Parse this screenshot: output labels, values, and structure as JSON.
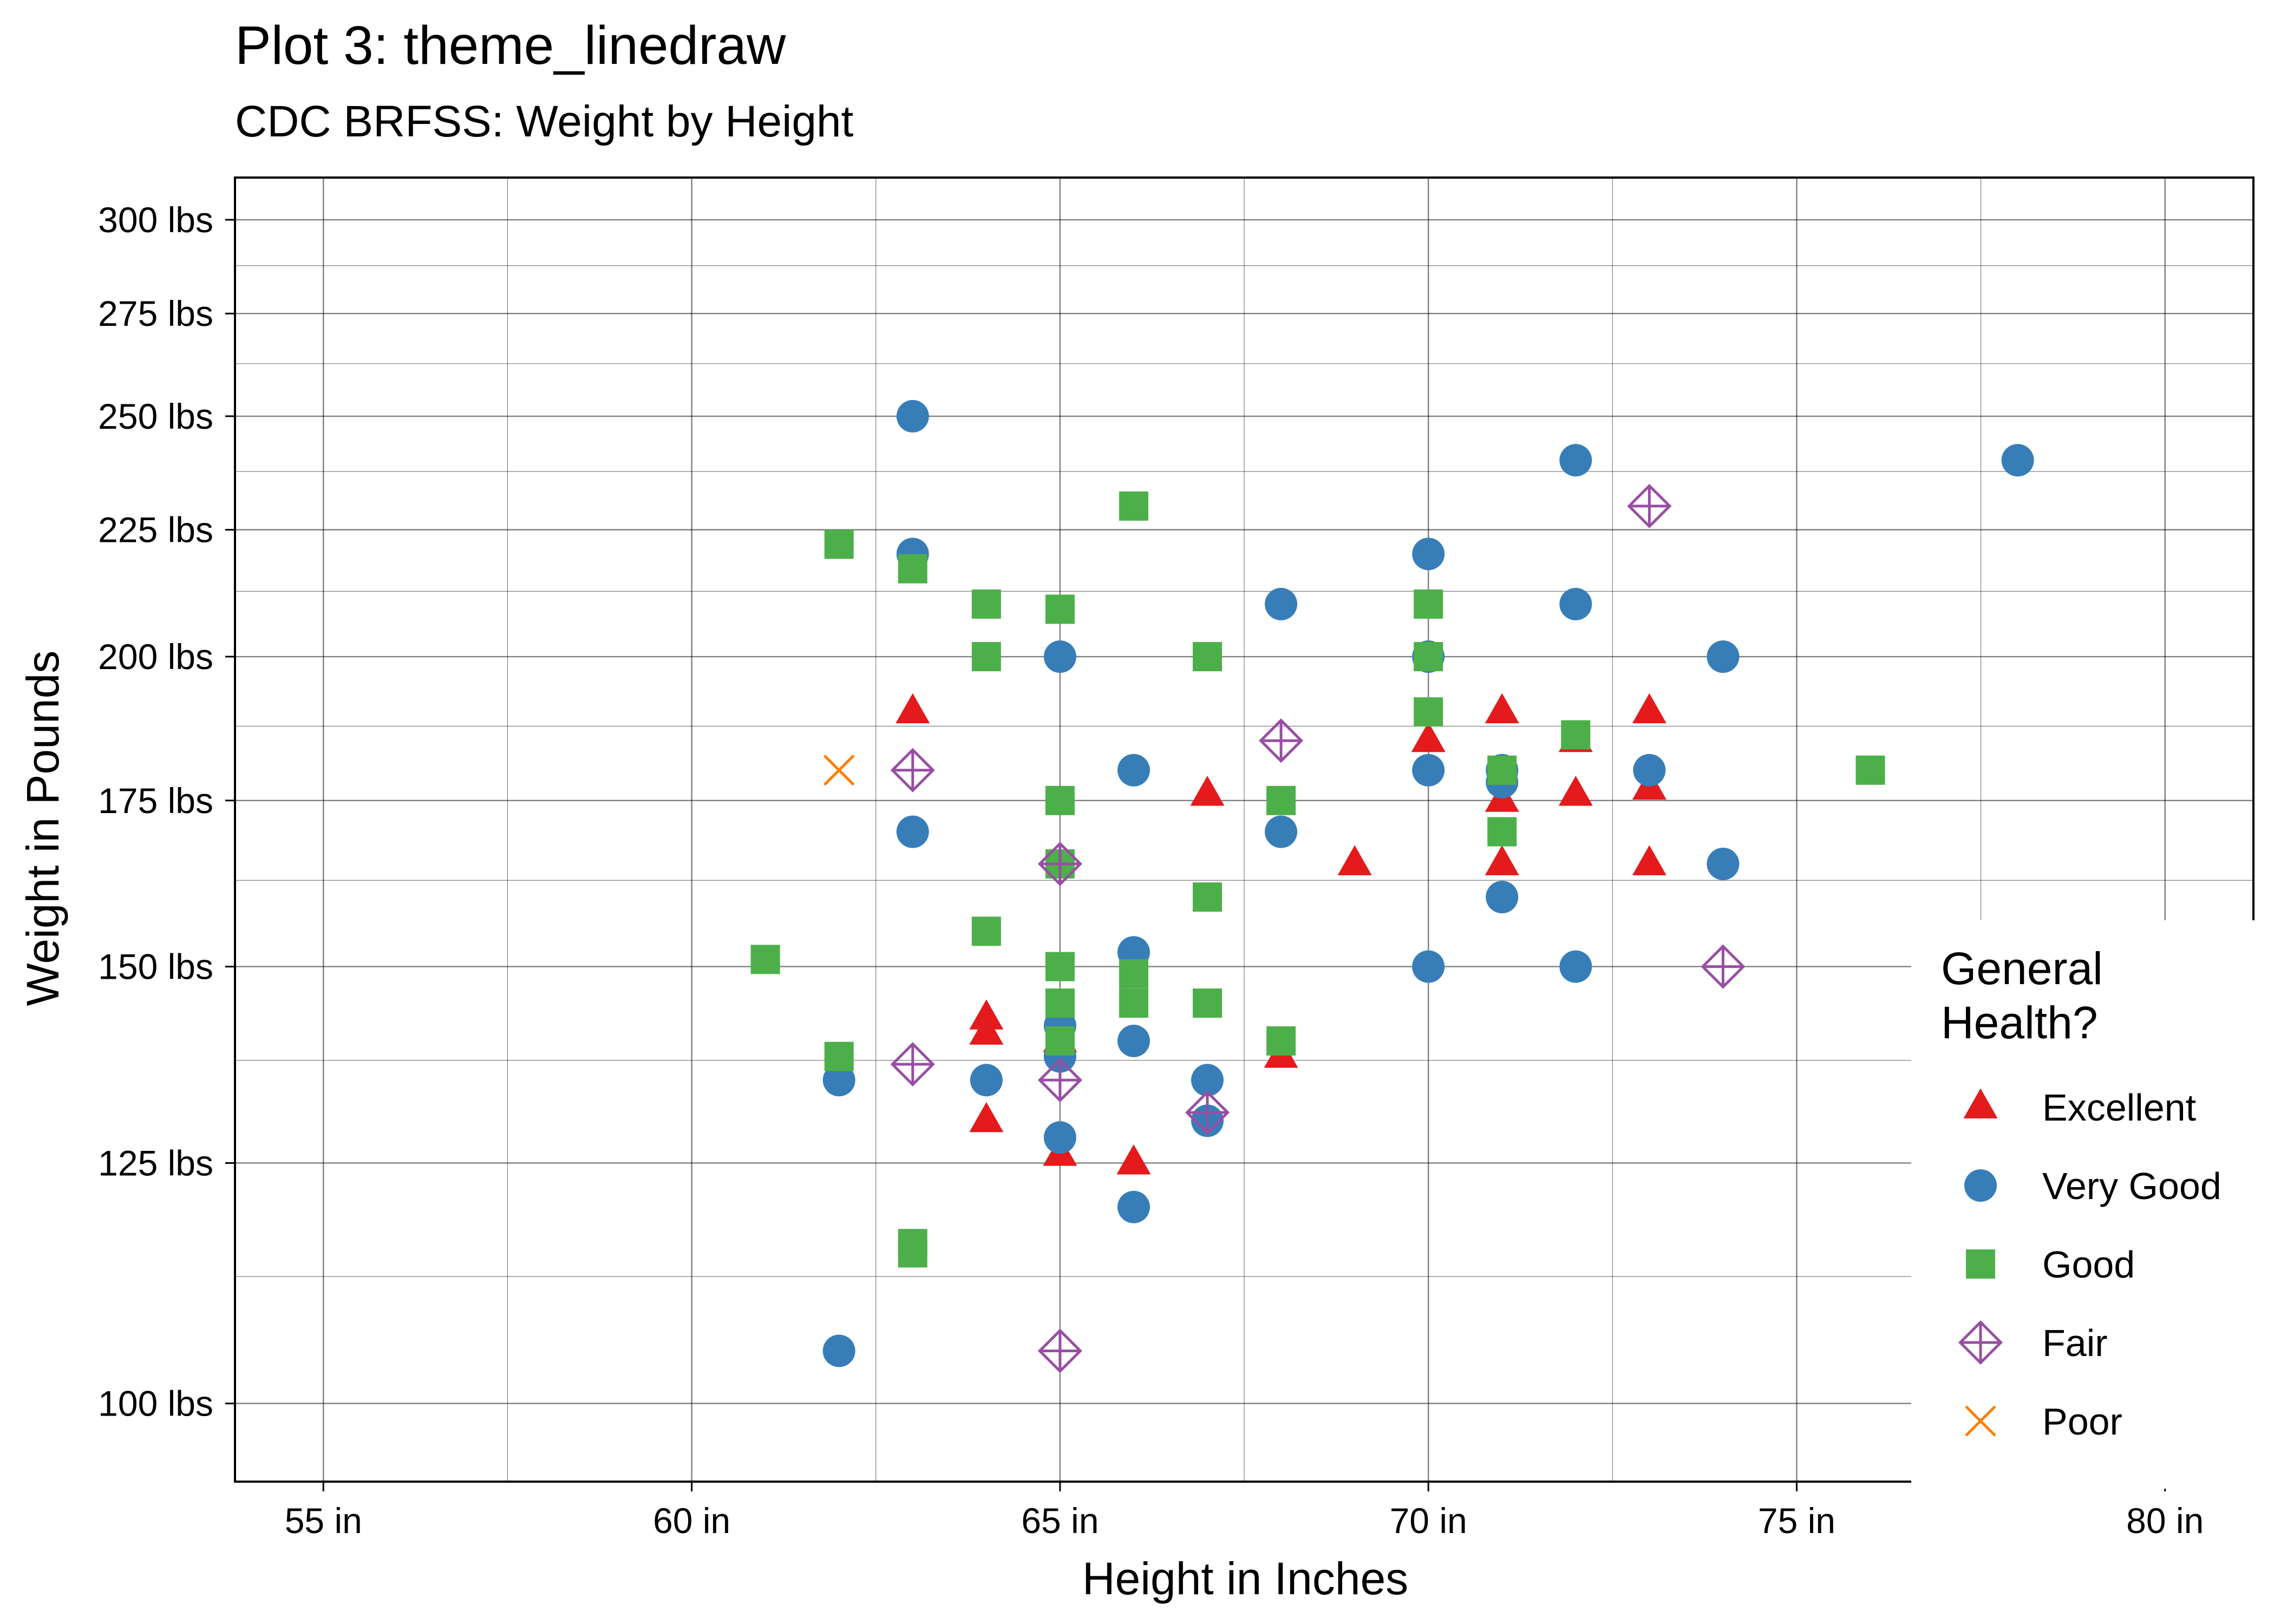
{
  "chart_data": {
    "type": "scatter",
    "title": "Plot 3: theme_linedraw",
    "subtitle": "CDC BRFSS: Weight by Height",
    "xlabel": "Height in Inches",
    "ylabel": "Weight in Pounds",
    "xlim": [
      53.8,
      81.2
    ],
    "ylim": [
      93,
      312
    ],
    "y_scale": "log",
    "x_ticks": [
      55,
      60,
      65,
      70,
      75,
      80
    ],
    "x_tick_labels": [
      "55 in",
      "60 in",
      "65 in",
      "70 in",
      "75 in",
      "80 in"
    ],
    "y_ticks": [
      100,
      125,
      150,
      175,
      200,
      225,
      250,
      275,
      300
    ],
    "y_tick_labels": [
      "100 lbs",
      "125 lbs",
      "150 lbs",
      "175 lbs",
      "200 lbs",
      "225 lbs",
      "250 lbs",
      "275 lbs",
      "300 lbs"
    ],
    "grid": true,
    "legend": {
      "title": "General Health?",
      "placement": "right-bottom"
    },
    "series": [
      {
        "name": "Excellent",
        "color": "#E41A1C",
        "shape": "triangle",
        "points": [
          [
            63,
            190
          ],
          [
            64,
            141
          ],
          [
            64,
            143
          ],
          [
            64,
            130
          ],
          [
            65,
            140
          ],
          [
            65,
            126
          ],
          [
            66,
            125
          ],
          [
            67,
            176
          ],
          [
            68,
            138
          ],
          [
            69,
            165
          ],
          [
            70,
            185
          ],
          [
            71,
            190
          ],
          [
            71,
            175
          ],
          [
            71,
            165
          ],
          [
            72,
            185
          ],
          [
            72,
            176
          ],
          [
            73,
            190
          ],
          [
            73,
            177
          ],
          [
            73,
            165
          ]
        ]
      },
      {
        "name": "Very Good",
        "color": "#377EB8",
        "shape": "circle",
        "points": [
          [
            62,
            135
          ],
          [
            62,
            105
          ],
          [
            63,
            250
          ],
          [
            63,
            220
          ],
          [
            63,
            170
          ],
          [
            64,
            135
          ],
          [
            65,
            200
          ],
          [
            65,
            142
          ],
          [
            65,
            138
          ],
          [
            65,
            128
          ],
          [
            66,
            180
          ],
          [
            66,
            152
          ],
          [
            66,
            140
          ],
          [
            66,
            120
          ],
          [
            67,
            135
          ],
          [
            67,
            130
          ],
          [
            68,
            210
          ],
          [
            68,
            170
          ],
          [
            70,
            220
          ],
          [
            70,
            200
          ],
          [
            70,
            180
          ],
          [
            70,
            150
          ],
          [
            71,
            180
          ],
          [
            71,
            178
          ],
          [
            71,
            160
          ],
          [
            72,
            240
          ],
          [
            72,
            210
          ],
          [
            72,
            150
          ],
          [
            73,
            180
          ],
          [
            74,
            200
          ],
          [
            74,
            165
          ],
          [
            78,
            240
          ]
        ]
      },
      {
        "name": "Good",
        "color": "#4DAF4A",
        "shape": "square",
        "points": [
          [
            61,
            151
          ],
          [
            62,
            222
          ],
          [
            62,
            138
          ],
          [
            63,
            217
          ],
          [
            63,
            115
          ],
          [
            63,
            116
          ],
          [
            64,
            210
          ],
          [
            64,
            200
          ],
          [
            64,
            155
          ],
          [
            65,
            209
          ],
          [
            65,
            175
          ],
          [
            65,
            165
          ],
          [
            65,
            150
          ],
          [
            65,
            145
          ],
          [
            65,
            140
          ],
          [
            66,
            230
          ],
          [
            66,
            149
          ],
          [
            66,
            145
          ],
          [
            67,
            200
          ],
          [
            67,
            160
          ],
          [
            67,
            145
          ],
          [
            68,
            175
          ],
          [
            68,
            140
          ],
          [
            70,
            210
          ],
          [
            70,
            200
          ],
          [
            70,
            190
          ],
          [
            71,
            180
          ],
          [
            71,
            170
          ],
          [
            72,
            186
          ],
          [
            76,
            180
          ]
        ]
      },
      {
        "name": "Fair",
        "color": "#984EA3",
        "shape": "diamond-plus",
        "points": [
          [
            63,
            180
          ],
          [
            63,
            137
          ],
          [
            65,
            165
          ],
          [
            65,
            135
          ],
          [
            65,
            105
          ],
          [
            67,
            131
          ],
          [
            68,
            185
          ],
          [
            73,
            230
          ],
          [
            74,
            150
          ]
        ]
      },
      {
        "name": "Poor",
        "color": "#FF7F00",
        "shape": "cross",
        "points": [
          [
            62,
            180
          ]
        ]
      }
    ]
  }
}
